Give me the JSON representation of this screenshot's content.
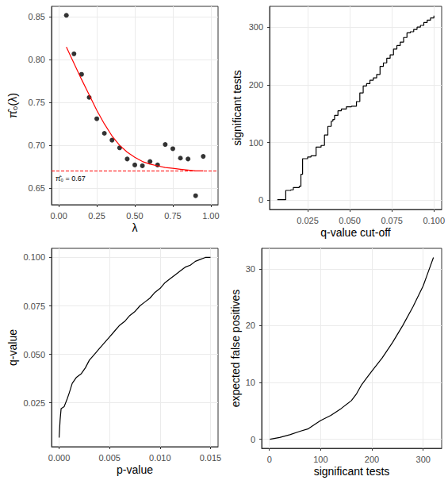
{
  "chart_data": [
    {
      "type": "scatter",
      "x_label": "λ",
      "y_label": "π̂₀(λ)",
      "x": [
        0.05,
        0.1,
        0.15,
        0.2,
        0.25,
        0.3,
        0.35,
        0.4,
        0.45,
        0.5,
        0.55,
        0.6,
        0.65,
        0.7,
        0.75,
        0.8,
        0.85,
        0.9,
        0.95
      ],
      "series": [
        {
          "type": "scatter",
          "color": "#000000",
          "marker": "circle",
          "values": [
            0.852,
            0.807,
            0.783,
            0.756,
            0.731,
            0.714,
            0.706,
            0.697,
            0.684,
            0.677,
            0.676,
            0.681,
            0.677,
            0.701,
            0.696,
            0.685,
            0.684,
            0.641,
            0.687
          ]
        },
        {
          "type": "line",
          "color": "#ff0000",
          "line_style": "solid",
          "values": [
            0.815,
            0.796,
            0.777,
            0.759,
            0.741,
            0.725,
            0.711,
            0.7,
            0.692,
            0.686,
            0.681,
            0.678,
            0.676,
            0.674,
            0.673,
            0.672,
            0.671,
            0.67,
            0.67
          ]
        }
      ],
      "hline": {
        "value": 0.67,
        "color": "#ff0000",
        "line_style": "dashed",
        "label": "π̂₀ = 0.67"
      },
      "xlim": [
        -0.0475,
        1.0475
      ],
      "ylim": [
        0.6305,
        0.8625
      ],
      "xticks": [
        {
          "value": 0,
          "label": "0.00"
        },
        0.25,
        {
          "value": 0.5,
          "label": "0.50"
        },
        0.75,
        {
          "value": 1,
          "label": "1.00"
        }
      ],
      "yticks": [
        0.65,
        {
          "value": 0.7,
          "label": "0.70"
        },
        0.75,
        {
          "value": 0.8,
          "label": "0.80"
        },
        0.85
      ],
      "grid": true
    },
    {
      "type": "line",
      "x_label": "q-value cut-off",
      "y_label": "significant tests",
      "x": [
        0.007,
        0.0115,
        0.012,
        0.015,
        0.0165,
        0.02,
        0.021,
        0.022,
        0.025,
        0.027,
        0.03,
        0.033,
        0.035,
        0.037,
        0.039,
        0.04,
        0.041,
        0.043,
        0.045,
        0.048,
        0.051,
        0.054,
        0.056,
        0.058,
        0.06,
        0.062,
        0.064,
        0.066,
        0.068,
        0.07,
        0.072,
        0.074,
        0.076,
        0.078,
        0.08,
        0.082,
        0.084,
        0.086,
        0.088,
        0.09,
        0.092,
        0.094,
        0.096,
        0.098,
        0.1
      ],
      "values": [
        1,
        1,
        17,
        18,
        22,
        24,
        45,
        72,
        75,
        77,
        92,
        95,
        113,
        128,
        137,
        140,
        147,
        155,
        158,
        162,
        163,
        171,
        186,
        198,
        202,
        208,
        212,
        218,
        232,
        238,
        246,
        252,
        262,
        268,
        274,
        282,
        290,
        292,
        296,
        300,
        303,
        308,
        312,
        316,
        320
      ],
      "color": "#000000",
      "line_style": "step",
      "xlim": [
        0.0024,
        0.1046
      ],
      "ylim": [
        -16,
        336
      ],
      "xticks": [
        {
          "value": 0.025,
          "label": "0.025"
        },
        {
          "value": 0.05,
          "label": "0.050"
        },
        {
          "value": 0.075,
          "label": "0.075"
        },
        {
          "value": 0.1,
          "label": "0.100"
        }
      ],
      "yticks": [
        0,
        100,
        200,
        300
      ],
      "grid": true
    },
    {
      "type": "line",
      "x_label": "p-value",
      "y_label": "q-value",
      "x": [
        0.0,
        0.0001,
        0.0002,
        0.0005,
        0.0008,
        0.001,
        0.0013,
        0.0017,
        0.0022,
        0.0026,
        0.003,
        0.0035,
        0.004,
        0.0045,
        0.005,
        0.0055,
        0.006,
        0.0065,
        0.007,
        0.0075,
        0.008,
        0.0085,
        0.009,
        0.0095,
        0.01,
        0.0105,
        0.011,
        0.0115,
        0.012,
        0.0125,
        0.013,
        0.0135,
        0.014,
        0.0145,
        0.015
      ],
      "values": [
        0.007,
        0.016,
        0.022,
        0.023,
        0.027,
        0.03,
        0.035,
        0.038,
        0.04,
        0.043,
        0.047,
        0.05,
        0.053,
        0.056,
        0.059,
        0.062,
        0.065,
        0.067,
        0.07,
        0.072,
        0.075,
        0.077,
        0.079,
        0.082,
        0.084,
        0.087,
        0.089,
        0.091,
        0.093,
        0.095,
        0.096,
        0.098,
        0.099,
        0.1,
        0.1
      ],
      "color": "#000000",
      "line_style": "solid",
      "xlim": [
        -0.00075,
        0.01575
      ],
      "ylim": [
        0.0023,
        0.1047
      ],
      "xticks": [
        {
          "value": 0,
          "label": "0.000"
        },
        {
          "value": 0.005,
          "label": "0.005"
        },
        {
          "value": 0.01,
          "label": "0.010"
        },
        {
          "value": 0.015,
          "label": "0.015"
        }
      ],
      "yticks": [
        {
          "value": 0.025,
          "label": "0.025"
        },
        {
          "value": 0.05,
          "label": "0.050"
        },
        {
          "value": 0.075,
          "label": "0.075"
        },
        {
          "value": 0.1,
          "label": "0.100"
        }
      ],
      "grid": true
    },
    {
      "type": "line",
      "x_label": "significant tests",
      "y_label": "expected false positives",
      "x": [
        1,
        20,
        40,
        60,
        75,
        90,
        100,
        120,
        140,
        160,
        170,
        180,
        190,
        200,
        220,
        240,
        260,
        280,
        300,
        310,
        320
      ],
      "values": [
        0,
        0.3,
        0.8,
        1.4,
        1.8,
        2.7,
        3.3,
        4.2,
        5.4,
        6.8,
        8.0,
        9.6,
        10.8,
        12.0,
        14.3,
        17.0,
        20.0,
        23.3,
        27.0,
        29.5,
        32.0
      ],
      "color": "#000000",
      "line_style": "solid",
      "xlim": [
        -15,
        336
      ],
      "ylim": [
        -1.6,
        33.6
      ],
      "xticks": [
        0,
        100,
        200,
        300
      ],
      "yticks": [
        0,
        10,
        20,
        30
      ],
      "grid": true
    }
  ]
}
